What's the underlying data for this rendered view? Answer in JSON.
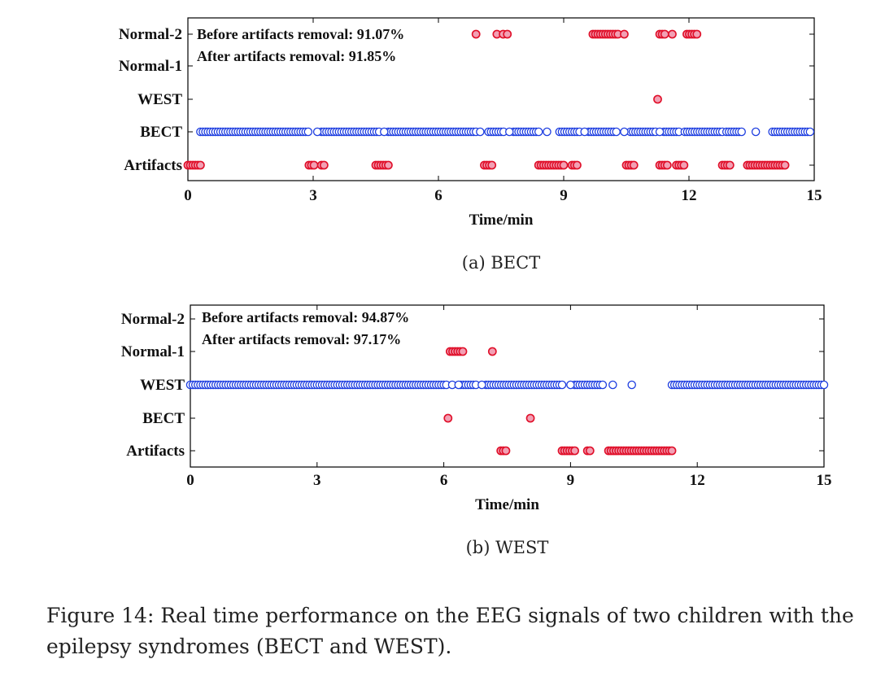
{
  "figure_caption_line1": "Figure 14: Real time performance on the EEG signals of two children with the",
  "figure_caption_line2": "epilepsy syndromes (BECT and WEST).",
  "chart_data": [
    {
      "type": "scatter",
      "caption": "(a) BECT",
      "xlabel": "Time/min",
      "ylabel": "",
      "xlim": [
        0,
        15
      ],
      "xticks": [
        0,
        3,
        6,
        9,
        12,
        15
      ],
      "ycategories": [
        "Artifacts",
        "BECT",
        "WEST",
        "Normal-1",
        "Normal-2"
      ],
      "annotations": [
        "Before artifacts removal: 91.07%",
        "After artifacts removal: 91.85%"
      ],
      "grid": false,
      "series": [
        {
          "marker": "open-blue",
          "points": [
            {
              "segments": [
                [
                  0.3,
                  2.9
                ],
                [
                  3.2,
                  4.6
                ],
                [
                  4.8,
                  6.9
                ],
                [
                  7.2,
                  7.6
                ],
                [
                  7.8,
                  8.4
                ],
                [
                  8.9,
                  9.4
                ],
                [
                  9.6,
                  10.3
                ],
                [
                  10.6,
                  11.2
                ],
                [
                  11.4,
                  11.8
                ],
                [
                  11.9,
                  12.8
                ],
                [
                  12.9,
                  13.3
                ],
                [
                  14.0,
                  14.9
                ]
              ],
              "y": "BECT"
            },
            {
              "points": [
                3.1,
                4.7,
                7.0,
                7.7,
                8.6,
                9.5,
                10.45,
                11.3,
                13.6
              ],
              "y": "BECT"
            }
          ]
        },
        {
          "marker": "filled-pink-red-edge",
          "points": [
            {
              "segments": [
                [
                  0.0,
                  0.3
                ],
                [
                  2.9,
                  3.05
                ],
                [
                  3.2,
                  3.3
                ],
                [
                  4.5,
                  4.8
                ],
                [
                  7.1,
                  7.3
                ],
                [
                  8.4,
                  9.0
                ],
                [
                  9.2,
                  9.35
                ],
                [
                  10.5,
                  10.7
                ],
                [
                  11.3,
                  11.5
                ],
                [
                  11.7,
                  11.9
                ],
                [
                  12.8,
                  13.0
                ],
                [
                  13.4,
                  14.3
                ]
              ],
              "y": "Artifacts"
            },
            {
              "points": [
                11.25
              ],
              "y": "WEST"
            },
            {
              "points": [
                6.9,
                7.4,
                7.55,
                7.65
              ],
              "y": "Normal-2"
            },
            {
              "segments": [
                [
                  9.7,
                  10.3
                ],
                [
                  11.3,
                  11.45
                ],
                [
                  11.95,
                  12.2
                ]
              ],
              "y": "Normal-2"
            },
            {
              "points": [
                10.45,
                11.6
              ],
              "y": "Normal-2"
            }
          ]
        }
      ]
    },
    {
      "type": "scatter",
      "caption": "(b) WEST",
      "xlabel": "Time/min",
      "ylabel": "",
      "xlim": [
        0,
        15
      ],
      "xticks": [
        0,
        3,
        6,
        9,
        12,
        15
      ],
      "ycategories": [
        "Artifacts",
        "BECT",
        "WEST",
        "Normal-1",
        "Normal-2"
      ],
      "annotations": [
        "Before artifacts removal: 94.87%",
        "After artifacts removal: 97.17%"
      ],
      "grid": false,
      "series": [
        {
          "marker": "open-blue",
          "points": [
            {
              "segments": [
                [
                  0.0,
                  6.1
                ],
                [
                  6.4,
                  6.8
                ],
                [
                  7.0,
                  8.8
                ],
                [
                  9.1,
                  9.8
                ],
                [
                  11.4,
                  15.0
                ]
              ],
              "y": "WEST"
            },
            {
              "points": [
                6.2,
                6.35,
                6.9,
                9.0,
                10.0,
                10.45
              ],
              "y": "WEST"
            }
          ]
        },
        {
          "marker": "filled-pink-red-edge",
          "points": [
            {
              "segments": [
                [
                  7.35,
                  7.5
                ],
                [
                  8.8,
                  9.1
                ],
                [
                  9.4,
                  9.5
                ],
                [
                  9.9,
                  11.4
                ]
              ],
              "y": "Artifacts"
            },
            {
              "points": [
                6.1,
                8.05
              ],
              "y": "BECT"
            },
            {
              "segments": [
                [
                  6.15,
                  6.5
                ]
              ],
              "y": "Normal-1"
            },
            {
              "points": [
                7.15
              ],
              "y": "Normal-1"
            }
          ]
        }
      ]
    }
  ]
}
